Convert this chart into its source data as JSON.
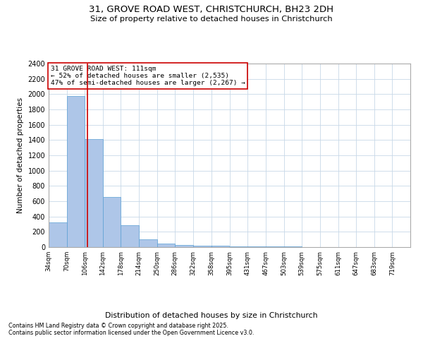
{
  "title_line1": "31, GROVE ROAD WEST, CHRISTCHURCH, BH23 2DH",
  "title_line2": "Size of property relative to detached houses in Christchurch",
  "xlabel": "Distribution of detached houses by size in Christchurch",
  "ylabel": "Number of detached properties",
  "annotation_title": "31 GROVE ROAD WEST: 111sqm",
  "annotation_line2": "← 52% of detached houses are smaller (2,535)",
  "annotation_line3": "47% of semi-detached houses are larger (2,267) →",
  "footer_line1": "Contains HM Land Registry data © Crown copyright and database right 2025.",
  "footer_line2": "Contains public sector information licensed under the Open Government Licence v3.0.",
  "property_size": 111,
  "bin_edges": [
    34,
    70,
    106,
    142,
    178,
    214,
    250,
    286,
    322,
    358,
    395,
    431,
    467,
    503,
    539,
    575,
    611,
    647,
    683,
    719,
    755
  ],
  "bar_heights": [
    325,
    1975,
    1415,
    655,
    285,
    105,
    50,
    30,
    20,
    15,
    10,
    8,
    5,
    5,
    3,
    3,
    2,
    2,
    2,
    2
  ],
  "bar_color": "#aec6e8",
  "bar_edge_color": "#5a9fd4",
  "vline_color": "#cc0000",
  "box_edge_color": "#cc0000",
  "background_color": "#ffffff",
  "grid_color": "#c8d8e8",
  "ylim": [
    0,
    2400
  ],
  "yticks": [
    0,
    200,
    400,
    600,
    800,
    1000,
    1200,
    1400,
    1600,
    1800,
    2000,
    2200,
    2400
  ]
}
